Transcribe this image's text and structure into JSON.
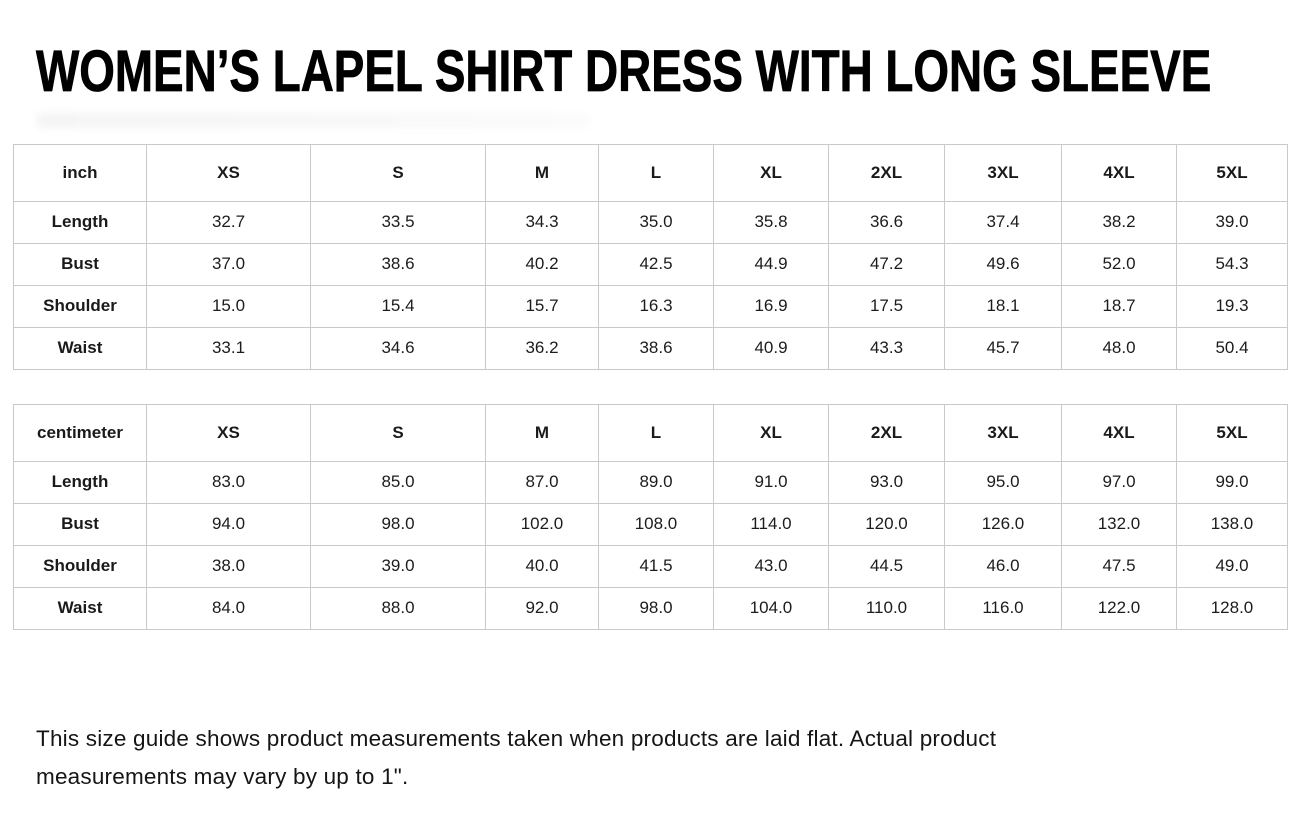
{
  "page": {
    "title": "WOMEN’S LAPEL SHIRT DRESS WITH LONG SLEEVE",
    "footnote": "This size guide shows product measurements taken when products are laid flat. Actual product measurements may vary by up to 1\"."
  },
  "tables": [
    {
      "unit_label": "inch",
      "columns": [
        "XS",
        "S",
        "M",
        "L",
        "XL",
        "2XL",
        "3XL",
        "4XL",
        "5XL"
      ],
      "rows": [
        {
          "label": "Length",
          "values": [
            "32.7",
            "33.5",
            "34.3",
            "35.0",
            "35.8",
            "36.6",
            "37.4",
            "38.2",
            "39.0"
          ]
        },
        {
          "label": "Bust",
          "values": [
            "37.0",
            "38.6",
            "40.2",
            "42.5",
            "44.9",
            "47.2",
            "49.6",
            "52.0",
            "54.3"
          ]
        },
        {
          "label": "Shoulder",
          "values": [
            "15.0",
            "15.4",
            "15.7",
            "16.3",
            "16.9",
            "17.5",
            "18.1",
            "18.7",
            "19.3"
          ]
        },
        {
          "label": "Waist",
          "values": [
            "33.1",
            "34.6",
            "36.2",
            "38.6",
            "40.9",
            "43.3",
            "45.7",
            "48.0",
            "50.4"
          ]
        }
      ]
    },
    {
      "unit_label": "centimeter",
      "columns": [
        "XS",
        "S",
        "M",
        "L",
        "XL",
        "2XL",
        "3XL",
        "4XL",
        "5XL"
      ],
      "rows": [
        {
          "label": "Length",
          "values": [
            "83.0",
            "85.0",
            "87.0",
            "89.0",
            "91.0",
            "93.0",
            "95.0",
            "97.0",
            "99.0"
          ]
        },
        {
          "label": "Bust",
          "values": [
            "94.0",
            "98.0",
            "102.0",
            "108.0",
            "114.0",
            "120.0",
            "126.0",
            "132.0",
            "138.0"
          ]
        },
        {
          "label": "Shoulder",
          "values": [
            "38.0",
            "39.0",
            "40.0",
            "41.5",
            "43.0",
            "44.5",
            "46.0",
            "47.5",
            "49.0"
          ]
        },
        {
          "label": "Waist",
          "values": [
            "84.0",
            "88.0",
            "92.0",
            "98.0",
            "104.0",
            "110.0",
            "116.0",
            "122.0",
            "128.0"
          ]
        }
      ]
    }
  ]
}
